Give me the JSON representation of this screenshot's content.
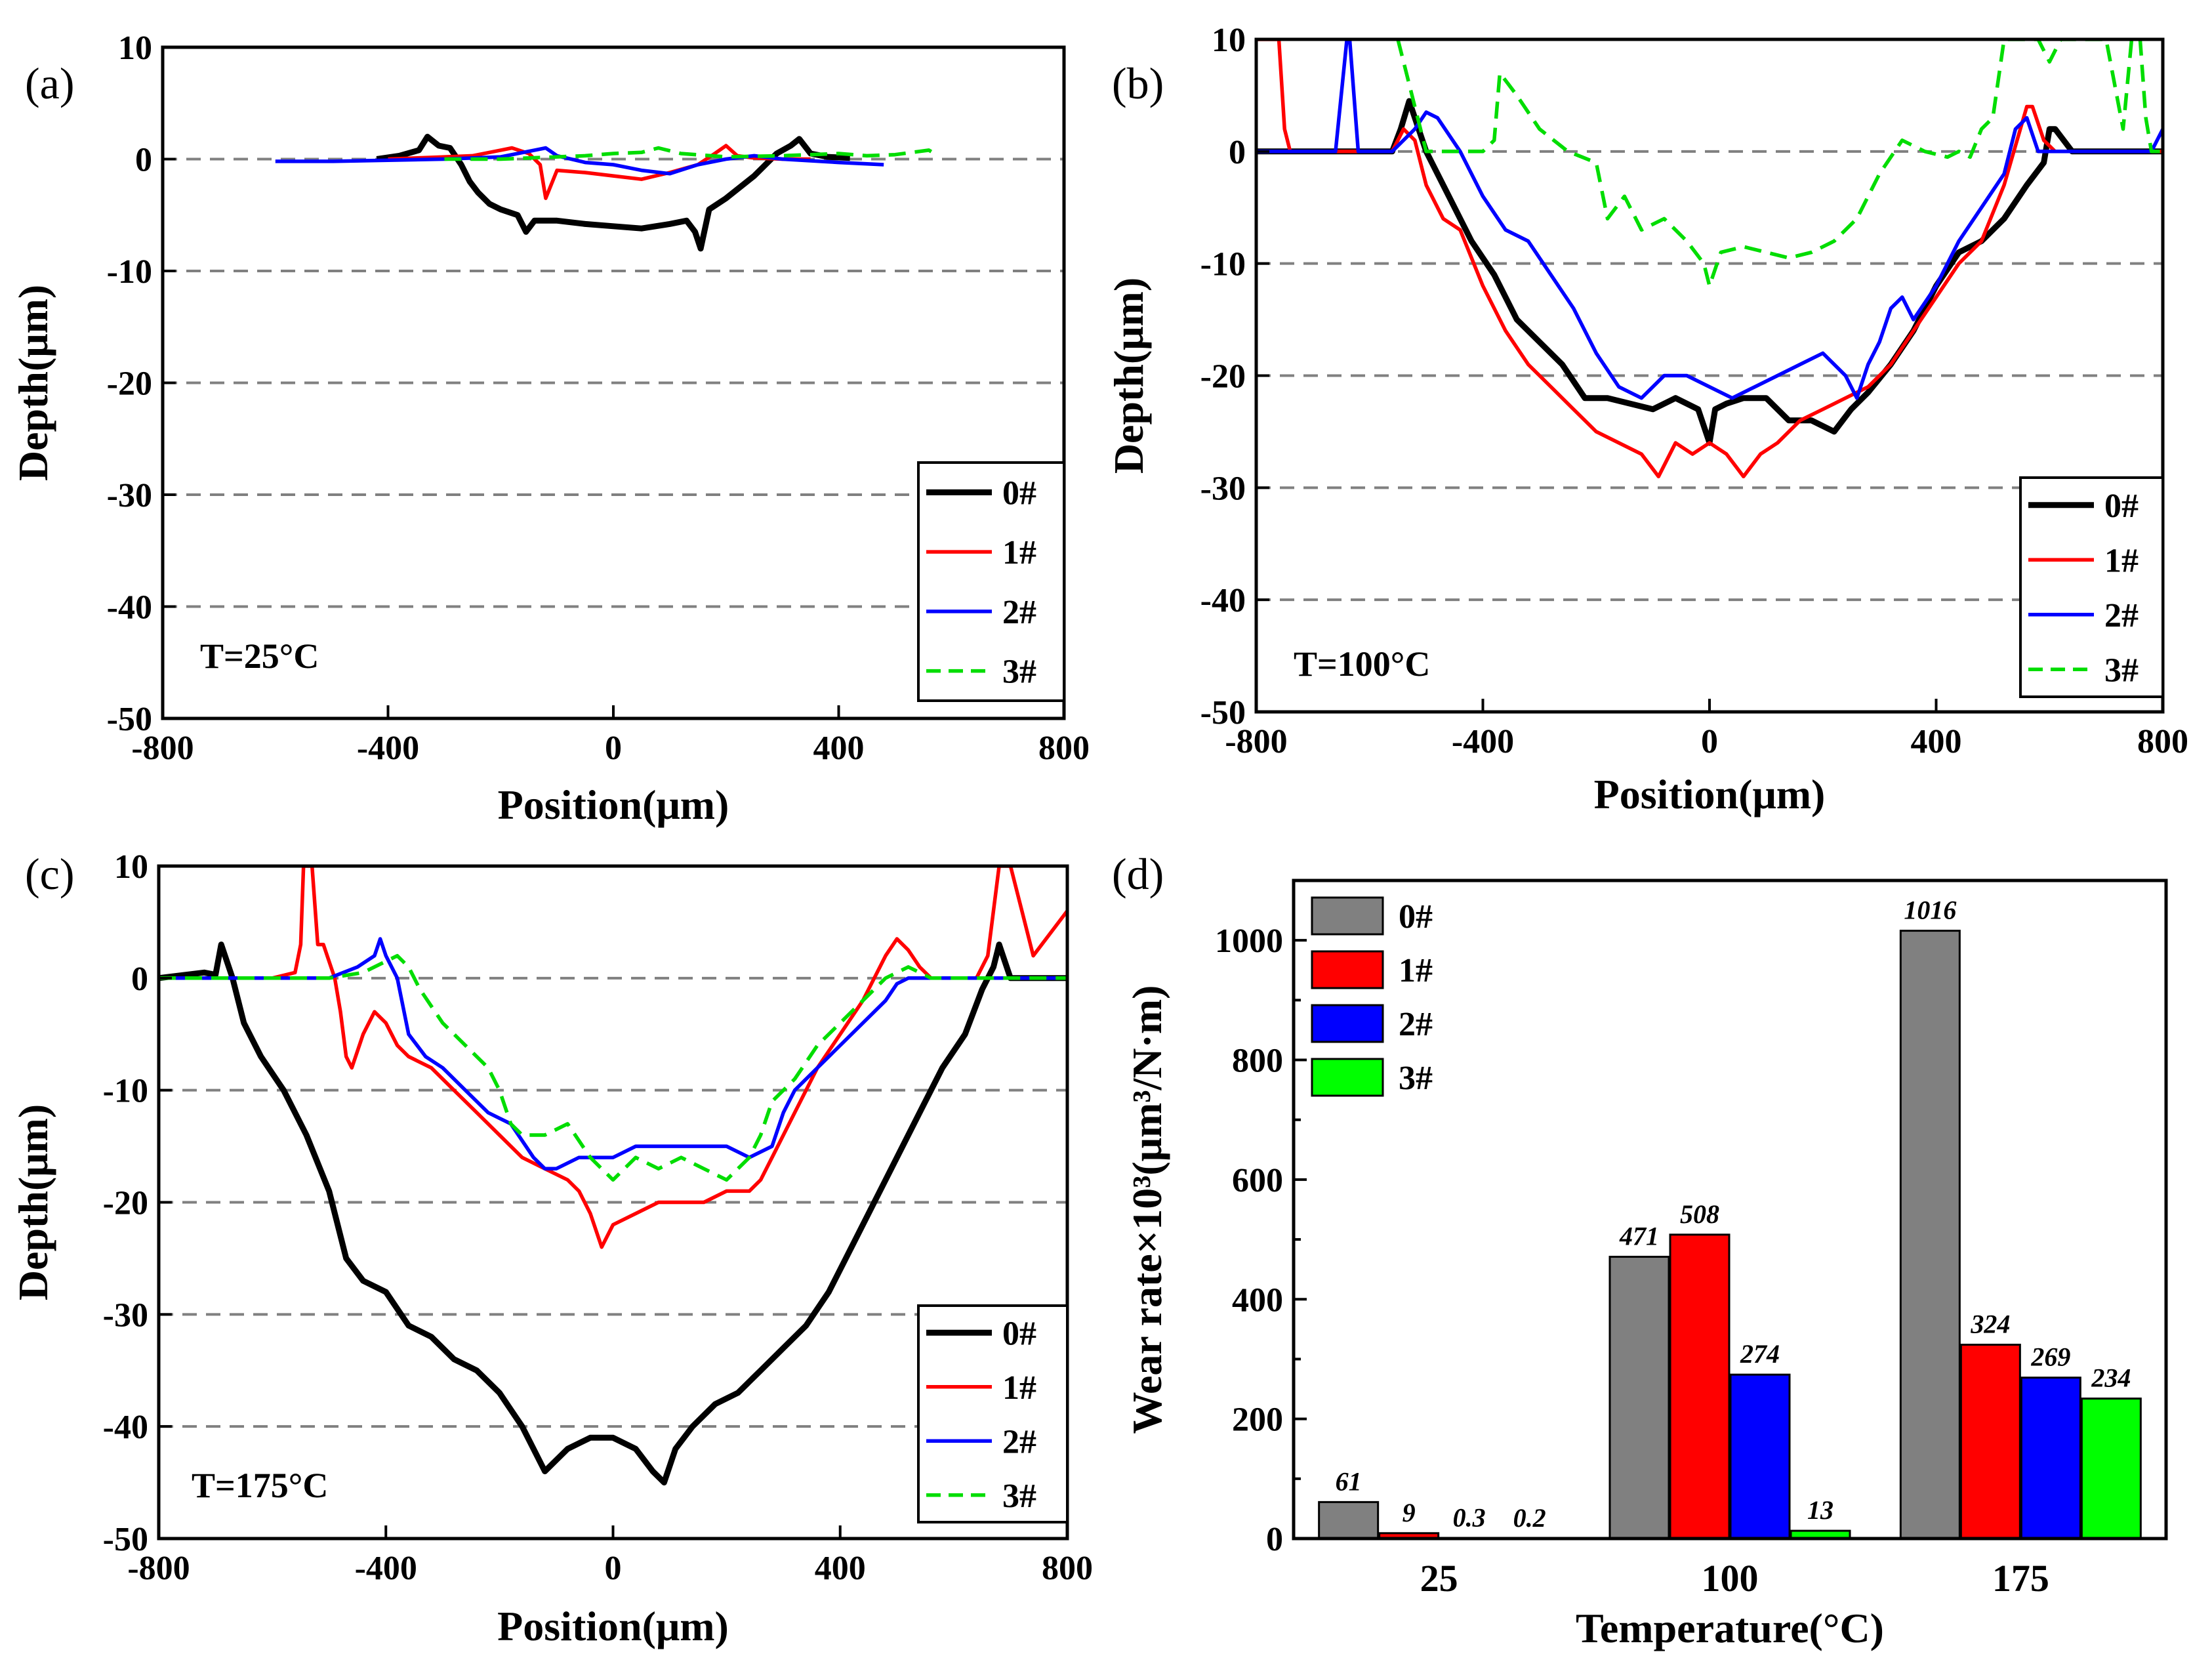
{
  "colors": {
    "0#": "#000000",
    "1#": "#ff0000",
    "2#": "#0000ff",
    "3#": "#00dd00",
    "bar_0#": "#808080",
    "bar_1#": "#ff0000",
    "bar_2#": "#0000ff",
    "bar_3#": "#00ff00",
    "grid": "#808080"
  },
  "chart_data": [
    {
      "panel": "(a)",
      "type": "line",
      "condition": "T=25°C",
      "xlabel": "Position(μm)",
      "ylabel": "Depth(μm)",
      "xlim": [
        -800,
        800
      ],
      "ylim": [
        -50,
        10
      ],
      "xticks": [
        "-800",
        "-400",
        "0",
        "400",
        "800"
      ],
      "yticks": [
        "10",
        "0",
        "-10",
        "-20",
        "-30",
        "-40",
        "-50"
      ],
      "gridlines_y": [
        0,
        -10,
        -20,
        -30,
        -40
      ],
      "legend": [
        "0#",
        "1#",
        "2#",
        "3#"
      ],
      "series": [
        {
          "name": "0#",
          "dash": false,
          "x": [
            -420,
            -380,
            -345,
            -330,
            -310,
            -290,
            -270,
            -255,
            -240,
            -220,
            -200,
            -170,
            -155,
            -140,
            -100,
            -50,
            0,
            50,
            100,
            130,
            145,
            155,
            170,
            200,
            250,
            290,
            315,
            330,
            350,
            380,
            420
          ],
          "y": [
            0,
            0.3,
            0.8,
            2,
            1.2,
            1,
            -0.5,
            -2,
            -3,
            -4,
            -4.5,
            -5,
            -6.5,
            -5.5,
            -5.5,
            -5.8,
            -6,
            -6.2,
            -5.8,
            -5.5,
            -6.5,
            -8,
            -4.5,
            -3.5,
            -1.5,
            0.5,
            1.2,
            1.8,
            0.5,
            0.2,
            0.1
          ]
        },
        {
          "name": "1#",
          "dash": false,
          "x": [
            -400,
            -300,
            -250,
            -200,
            -180,
            -150,
            -130,
            -120,
            -100,
            -50,
            0,
            50,
            100,
            150,
            180,
            200,
            220,
            250,
            300,
            350
          ],
          "y": [
            0,
            0.2,
            0.3,
            0.8,
            1,
            0.5,
            -0.5,
            -3.5,
            -1,
            -1.2,
            -1.5,
            -1.8,
            -1.2,
            -0.5,
            0.5,
            1.2,
            0.3,
            0.1,
            0,
            0
          ]
        },
        {
          "name": "2#",
          "dash": false,
          "x": [
            -600,
            -500,
            -400,
            -300,
            -200,
            -140,
            -120,
            -100,
            -50,
            0,
            50,
            100,
            150,
            200,
            250,
            300,
            400,
            480
          ],
          "y": [
            -0.2,
            -0.2,
            -0.1,
            0,
            0.2,
            0.8,
            1,
            0.3,
            -0.3,
            -0.5,
            -1,
            -1.3,
            -0.5,
            0,
            0.3,
            0,
            -0.3,
            -0.5
          ]
        },
        {
          "name": "3#",
          "dash": true,
          "x": [
            -300,
            -200,
            -100,
            -50,
            0,
            50,
            80,
            120,
            200,
            300,
            400,
            450,
            500,
            560,
            570
          ],
          "y": [
            0,
            0,
            0.2,
            0.3,
            0.5,
            0.6,
            1,
            0.5,
            0.2,
            0.3,
            0.5,
            0.3,
            0.4,
            0.8,
            0.5
          ]
        }
      ]
    },
    {
      "panel": "(b)",
      "type": "line",
      "condition": "T=100°C",
      "xlabel": "Position(μm)",
      "ylabel": "Depth(μm)",
      "xlim": [
        -800,
        800
      ],
      "ylim": [
        -50,
        10
      ],
      "xticks": [
        "-800",
        "-400",
        "0",
        "400",
        "800"
      ],
      "yticks": [
        "10",
        "0",
        "-10",
        "-20",
        "-30",
        "-40",
        "-50"
      ],
      "gridlines_y": [
        0,
        -10,
        -20,
        -30,
        -40
      ],
      "legend": [
        "0#",
        "1#",
        "2#",
        "3#"
      ],
      "series": [
        {
          "name": "0#",
          "dash": false,
          "x": [
            -800,
            -600,
            -560,
            -545,
            -530,
            -500,
            -460,
            -420,
            -380,
            -340,
            -300,
            -260,
            -220,
            -180,
            -140,
            -100,
            -60,
            -20,
            0,
            10,
            30,
            60,
            100,
            140,
            180,
            220,
            250,
            280,
            320,
            360,
            400,
            440,
            480,
            520,
            560,
            590,
            600,
            610,
            640,
            700,
            800
          ],
          "y": [
            0,
            0,
            0,
            2,
            4.5,
            0,
            -4,
            -8,
            -11,
            -15,
            -17,
            -19,
            -22,
            -22,
            -22.5,
            -23,
            -22,
            -23,
            -26,
            -23,
            -22.5,
            -22,
            -22,
            -24,
            -24,
            -25,
            -23,
            -21.5,
            -19,
            -16,
            -12,
            -9,
            -8,
            -6,
            -3,
            -1,
            2,
            2,
            0,
            0,
            0
          ]
        },
        {
          "name": "1#",
          "dash": false,
          "x": [
            -800,
            -760,
            -750,
            -740,
            -720,
            -600,
            -560,
            -540,
            -520,
            -500,
            -470,
            -440,
            -400,
            -360,
            -320,
            -280,
            -240,
            -200,
            -160,
            -120,
            -90,
            -60,
            -30,
            0,
            30,
            60,
            90,
            120,
            160,
            200,
            240,
            280,
            320,
            360,
            400,
            440,
            480,
            520,
            560,
            570,
            590,
            610,
            640,
            700,
            800
          ],
          "y": [
            10,
            10,
            2,
            0,
            0,
            0,
            0,
            2,
            1,
            -3,
            -6,
            -7,
            -12,
            -16,
            -19,
            -21,
            -23,
            -25,
            -26,
            -27,
            -29,
            -26,
            -27,
            -26,
            -27,
            -29,
            -27,
            -26,
            -24,
            -23,
            -22,
            -21,
            -19,
            -16,
            -13,
            -10,
            -8,
            -3,
            4,
            4,
            1,
            0,
            0,
            0,
            0
          ]
        },
        {
          "name": "2#",
          "dash": false,
          "x": [
            -800,
            -700,
            -660,
            -640,
            -635,
            -620,
            -560,
            -520,
            -500,
            -480,
            -440,
            -400,
            -360,
            -320,
            -280,
            -240,
            -200,
            -160,
            -120,
            -80,
            -40,
            0,
            40,
            80,
            120,
            160,
            200,
            240,
            260,
            280,
            300,
            320,
            340,
            360,
            400,
            440,
            480,
            520,
            540,
            560,
            580,
            600,
            700,
            780,
            800
          ],
          "y": [
            0,
            0,
            0,
            10,
            10,
            0,
            0,
            2,
            3.5,
            3,
            0,
            -4,
            -7,
            -8,
            -11,
            -14,
            -18,
            -21,
            -22,
            -20,
            -20,
            -21,
            -22,
            -21,
            -20,
            -19,
            -18,
            -20,
            -22,
            -19,
            -17,
            -14,
            -13,
            -15,
            -12,
            -8,
            -5,
            -2,
            2,
            3,
            0,
            0,
            0,
            0,
            2
          ]
        },
        {
          "name": "3#",
          "dash": true,
          "x": [
            -550,
            -540,
            -520,
            -500,
            -470,
            -440,
            -400,
            -380,
            -370,
            -355,
            -340,
            -300,
            -250,
            -200,
            -180,
            -150,
            -120,
            -80,
            -40,
            -10,
            0,
            20,
            60,
            100,
            140,
            180,
            220,
            260,
            300,
            340,
            380,
            420,
            440,
            460,
            480,
            500,
            520,
            580,
            600,
            620,
            650,
            700,
            730,
            745,
            760,
            770,
            780,
            790,
            800
          ],
          "y": [
            10,
            8,
            4,
            0,
            0,
            0,
            0,
            1,
            7,
            6,
            5,
            2,
            0,
            -1,
            -6,
            -4,
            -7,
            -6,
            -8,
            -10,
            -12,
            -9,
            -8.5,
            -9,
            -9.5,
            -9,
            -8,
            -6,
            -2,
            1,
            0,
            -0.5,
            0,
            -0.5,
            2,
            3,
            10,
            10,
            8,
            10,
            10,
            10,
            2,
            10,
            10,
            3,
            0,
            0,
            0
          ]
        }
      ]
    },
    {
      "panel": "(c)",
      "type": "line",
      "condition": "T=175°C",
      "xlabel": "Position(μm)",
      "ylabel": "Depth(μm)",
      "xlim": [
        -800,
        800
      ],
      "ylim": [
        -50,
        10
      ],
      "xticks": [
        "-800",
        "-400",
        "0",
        "400",
        "800"
      ],
      "yticks": [
        "10",
        "0",
        "-10",
        "-20",
        "-30",
        "-40",
        "-50"
      ],
      "gridlines_y": [
        0,
        -10,
        -20,
        -30,
        -40
      ],
      "legend": [
        "0#",
        "1#",
        "2#",
        "3#"
      ],
      "series": [
        {
          "name": "0#",
          "dash": false,
          "x": [
            -800,
            -720,
            -700,
            -690,
            -670,
            -650,
            -620,
            -580,
            -540,
            -500,
            -470,
            -440,
            -400,
            -360,
            -320,
            -280,
            -240,
            -200,
            -160,
            -140,
            -120,
            -100,
            -80,
            -40,
            0,
            40,
            70,
            90,
            110,
            140,
            180,
            220,
            260,
            300,
            340,
            380,
            420,
            460,
            500,
            540,
            580,
            620,
            650,
            670,
            680,
            700,
            800
          ],
          "y": [
            0,
            0.5,
            0.3,
            3,
            0,
            -4,
            -7,
            -10,
            -14,
            -19,
            -25,
            -27,
            -28,
            -31,
            -32,
            -34,
            -35,
            -37,
            -40,
            -42,
            -44,
            -43,
            -42,
            -41,
            -41,
            -42,
            -44,
            -45,
            -42,
            -40,
            -38,
            -37,
            -35,
            -33,
            -31,
            -28,
            -24,
            -20,
            -16,
            -12,
            -8,
            -5,
            -1,
            1,
            3,
            0,
            0
          ]
        },
        {
          "name": "1#",
          "dash": false,
          "x": [
            -800,
            -600,
            -560,
            -550,
            -545,
            -530,
            -520,
            -510,
            -490,
            -480,
            -470,
            -460,
            -440,
            -420,
            -400,
            -380,
            -360,
            -320,
            -280,
            -240,
            -200,
            -160,
            -120,
            -80,
            -60,
            -40,
            -20,
            0,
            40,
            80,
            120,
            160,
            200,
            240,
            260,
            280,
            320,
            360,
            400,
            440,
            480,
            500,
            520,
            540,
            560,
            600,
            640,
            660,
            680,
            700,
            720,
            740,
            800
          ],
          "y": [
            0,
            0,
            0.5,
            3,
            10,
            10,
            3,
            3,
            0,
            -3,
            -7,
            -8,
            -5,
            -3,
            -4,
            -6,
            -7,
            -8,
            -10,
            -12,
            -14,
            -16,
            -17,
            -18,
            -19,
            -21,
            -24,
            -22,
            -21,
            -20,
            -20,
            -20,
            -19,
            -19,
            -18,
            -16,
            -12,
            -8,
            -5,
            -2,
            2,
            3.5,
            2.5,
            1,
            0,
            0,
            0,
            2,
            10,
            10,
            6,
            2,
            6
          ]
        },
        {
          "name": "2#",
          "dash": false,
          "x": [
            -800,
            -600,
            -500,
            -450,
            -420,
            -410,
            -400,
            -380,
            -360,
            -330,
            -300,
            -260,
            -220,
            -180,
            -140,
            -120,
            -100,
            -60,
            -20,
            0,
            40,
            80,
            120,
            160,
            200,
            240,
            280,
            300,
            320,
            360,
            400,
            440,
            480,
            500,
            520,
            560,
            600,
            700,
            800
          ],
          "y": [
            0,
            0,
            0,
            1,
            2,
            3.5,
            2,
            0,
            -5,
            -7,
            -8,
            -10,
            -12,
            -13,
            -16,
            -17,
            -17,
            -16,
            -16,
            -16,
            -15,
            -15,
            -15,
            -15,
            -15,
            -16,
            -15,
            -12,
            -10,
            -8,
            -6,
            -4,
            -2,
            -0.5,
            0,
            0,
            0,
            0,
            0
          ]
        },
        {
          "name": "3#",
          "dash": true,
          "x": [
            -800,
            -600,
            -500,
            -440,
            -400,
            -380,
            -360,
            -340,
            -300,
            -260,
            -220,
            -200,
            -180,
            -160,
            -120,
            -80,
            -40,
            -20,
            0,
            40,
            80,
            120,
            160,
            200,
            220,
            240,
            260,
            280,
            320,
            360,
            400,
            440,
            480,
            520,
            560,
            600,
            700,
            800
          ],
          "y": [
            0,
            0,
            0,
            0.5,
            1.5,
            2,
            1,
            -1,
            -4,
            -6,
            -8,
            -10,
            -13,
            -14,
            -14,
            -13,
            -16,
            -17,
            -18,
            -16,
            -17,
            -16,
            -17,
            -18,
            -17,
            -16,
            -14,
            -11,
            -9,
            -6,
            -4,
            -2,
            0,
            1,
            0,
            0,
            0,
            0
          ]
        }
      ]
    },
    {
      "panel": "(d)",
      "type": "bar",
      "xlabel": "Temperature(°C)",
      "ylabel": "Wear rate×10³(μm³/N·m)",
      "categories": [
        "25",
        "100",
        "175"
      ],
      "ylim": [
        0,
        1100
      ],
      "yticks": [
        "0",
        "200",
        "400",
        "600",
        "800",
        "1000"
      ],
      "legend": [
        "0#",
        "1#",
        "2#",
        "3#"
      ],
      "series": [
        {
          "name": "0#",
          "values": [
            61,
            471,
            1016
          ],
          "labels": [
            "61",
            "471",
            "1016"
          ]
        },
        {
          "name": "1#",
          "values": [
            9,
            508,
            324
          ],
          "labels": [
            "9",
            "508",
            "324"
          ]
        },
        {
          "name": "2#",
          "values": [
            0.3,
            274,
            269
          ],
          "labels": [
            "0.3",
            "274",
            "269"
          ]
        },
        {
          "name": "3#",
          "values": [
            0.2,
            13,
            234
          ],
          "labels": [
            "0.2",
            "13",
            "234"
          ]
        }
      ]
    }
  ]
}
